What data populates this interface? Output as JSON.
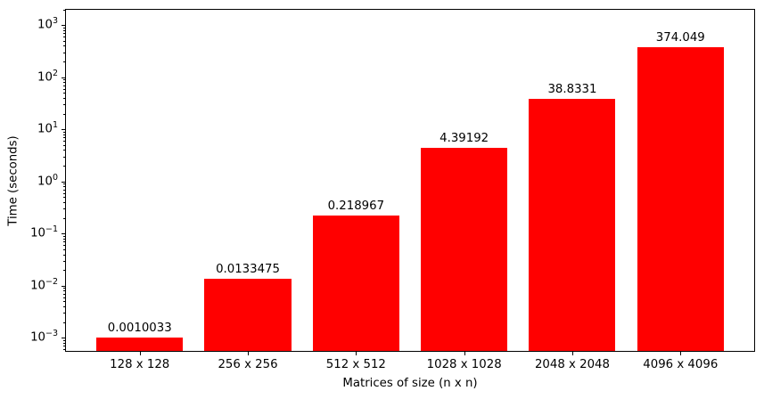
{
  "figure": {
    "background_color": "#ffffff",
    "bar_color": "#ff0000",
    "axis_color": "#000000",
    "text_color": "#000000"
  },
  "chart_data": {
    "type": "bar",
    "title": "",
    "xlabel": "Matrices of size (n x n)",
    "ylabel": "Time (seconds)",
    "categories": [
      "128 x 128",
      "256 x 256",
      "512 x 512",
      "1028 x 1028",
      "2048 x 2048",
      "4096 x 4096"
    ],
    "values": [
      0.0010033,
      0.0133475,
      0.218967,
      4.39192,
      38.8331,
      374.049
    ],
    "value_labels": [
      "0.0010033",
      "0.0133475",
      "0.218967",
      "4.39192",
      "38.8331",
      "374.049"
    ],
    "yscale": "log",
    "ylim": [
      0.00054,
      2040
    ],
    "xlim": [
      -0.69,
      5.69
    ],
    "y_tick_base": "10",
    "y_major_tick_exponents": [
      3,
      2,
      1,
      0,
      -1,
      -2,
      -3
    ],
    "bar_width_fraction": 0.8,
    "grid": false,
    "legend": null
  }
}
